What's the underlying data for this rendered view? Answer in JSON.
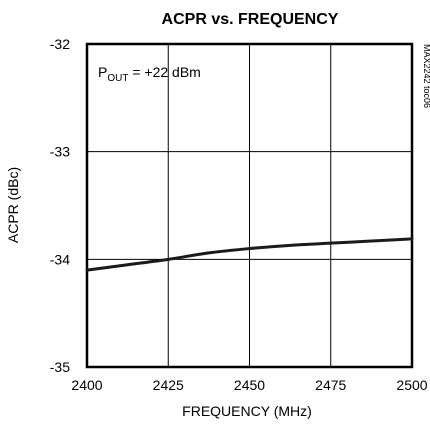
{
  "chart_data": {
    "type": "line",
    "title": "ACPR vs. FREQUENCY",
    "xlabel": "FREQUENCY (MHz)",
    "ylabel": "ACPR (dBc)",
    "xlim": [
      2400,
      2500
    ],
    "ylim": [
      -35,
      -32
    ],
    "x_ticks": [
      "2400",
      "2425",
      "2450",
      "2475",
      "2500"
    ],
    "y_ticks": [
      "-32",
      "-33",
      "-34",
      "-35"
    ],
    "grid": true,
    "annotation": {
      "main": "P",
      "sub": "OUT",
      "rest": " = +22 dBm"
    },
    "side_label": "MAX2242 toc06",
    "series": [
      {
        "color": "#1a1a1a",
        "x": [
          2400,
          2412.5,
          2425,
          2437.5,
          2450,
          2462.5,
          2475,
          2487.5,
          2500
        ],
        "y": [
          -34.1,
          -34.05,
          -34.0,
          -33.94,
          -33.9,
          -33.87,
          -33.85,
          -33.83,
          -33.81
        ]
      }
    ]
  }
}
